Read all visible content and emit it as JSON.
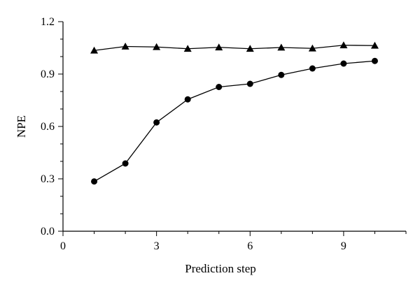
{
  "chart_data": {
    "type": "line",
    "title": "",
    "xlabel": "Prediction step",
    "ylabel": "NPE",
    "xlim": [
      0,
      11
    ],
    "ylim": [
      0.0,
      1.2
    ],
    "x_ticks": [
      0,
      3,
      6,
      9
    ],
    "y_ticks": [
      0.0,
      0.3,
      0.6,
      0.9,
      1.2
    ],
    "x_tick_labels": [
      "0",
      "3",
      "6",
      "9"
    ],
    "y_tick_labels": [
      "0.0",
      "0.3",
      "0.6",
      "0.9",
      "1.2"
    ],
    "grid": false,
    "legend": "none",
    "series": [
      {
        "marker": "triangle",
        "color": "#000000",
        "x": [
          1,
          2,
          3,
          4,
          5,
          6,
          7,
          8,
          9,
          10
        ],
        "y": [
          1.035,
          1.058,
          1.055,
          1.045,
          1.053,
          1.045,
          1.052,
          1.047,
          1.065,
          1.063
        ]
      },
      {
        "marker": "circle",
        "color": "#000000",
        "x": [
          1,
          2,
          3,
          4,
          5,
          6,
          7,
          8,
          9,
          10
        ],
        "y": [
          0.285,
          0.388,
          0.623,
          0.755,
          0.826,
          0.844,
          0.895,
          0.932,
          0.96,
          0.975
        ]
      }
    ]
  }
}
